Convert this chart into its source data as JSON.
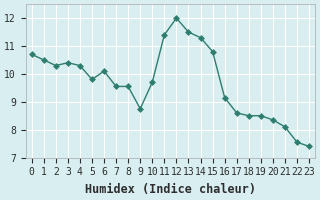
{
  "x": [
    0,
    1,
    2,
    3,
    4,
    5,
    6,
    7,
    8,
    9,
    10,
    11,
    12,
    13,
    14,
    15,
    16,
    17,
    18,
    19,
    20,
    21,
    22,
    23
  ],
  "y": [
    10.7,
    10.5,
    10.3,
    10.4,
    10.3,
    9.8,
    10.1,
    9.55,
    9.55,
    8.75,
    9.7,
    11.4,
    12.0,
    11.5,
    11.3,
    10.8,
    9.15,
    8.6,
    8.5,
    8.5,
    8.35,
    8.1,
    7.55,
    7.4
  ],
  "line_color": "#2e7d6e",
  "marker": "D",
  "marker_size": 3,
  "bg_color": "#d8eef0",
  "grid_color": "#ffffff",
  "xlabel": "Humidex (Indice chaleur)",
  "xlim": [
    -0.5,
    23.5
  ],
  "ylim": [
    7,
    12.5
  ],
  "yticks": [
    7,
    8,
    9,
    10,
    11,
    12
  ],
  "xticks": [
    0,
    1,
    2,
    3,
    4,
    5,
    6,
    7,
    8,
    9,
    10,
    11,
    12,
    13,
    14,
    15,
    16,
    17,
    18,
    19,
    20,
    21,
    22,
    23
  ],
  "font_color": "#2e2e2e",
  "xlabel_fontsize": 8.5,
  "tick_fontsize": 7
}
